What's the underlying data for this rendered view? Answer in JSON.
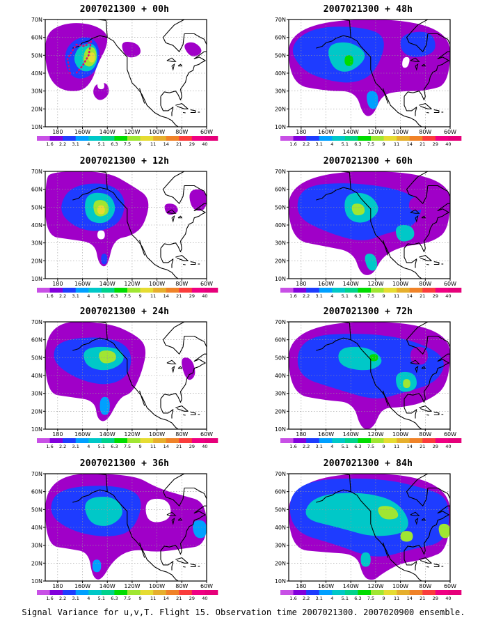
{
  "panels": [
    {
      "title": "2007021300 + 00h"
    },
    {
      "title": "2007021300 + 48h"
    },
    {
      "title": "2007021300 + 12h"
    },
    {
      "title": "2007021300 + 60h"
    },
    {
      "title": "2007021300 + 24h"
    },
    {
      "title": "2007021300 + 72h"
    },
    {
      "title": "2007021300 + 36h"
    },
    {
      "title": "2007021300 + 84h"
    }
  ],
  "lat_labels": [
    "70N",
    "60N",
    "50N",
    "40N",
    "30N",
    "20N",
    "10N"
  ],
  "lon_labels": [
    "180",
    "160W",
    "140W",
    "120W",
    "100W",
    "80W",
    "60W"
  ],
  "colorbar_labels": [
    "1.6",
    "2.2",
    "3.1",
    "4",
    "5.1",
    "6.3",
    "7.5",
    "9",
    "11",
    "14",
    "21",
    "29",
    "40"
  ],
  "colorbar_colors": [
    "#a000c8",
    "#8200dc",
    "#1e3cff",
    "#00a0ff",
    "#00c8c8",
    "#00d28c",
    "#00dc00",
    "#a0e632",
    "#e6dc32",
    "#e6af2d",
    "#f08228",
    "#fa3c3c",
    "#f00082"
  ],
  "footer": "Signal Variance for u,v,T. Flight 15. Observation time 2007021300. 2007020900 ensemble.",
  "colors": {
    "coast": "#000000",
    "grid": "#999999",
    "flight_track": "#e0007a"
  }
}
